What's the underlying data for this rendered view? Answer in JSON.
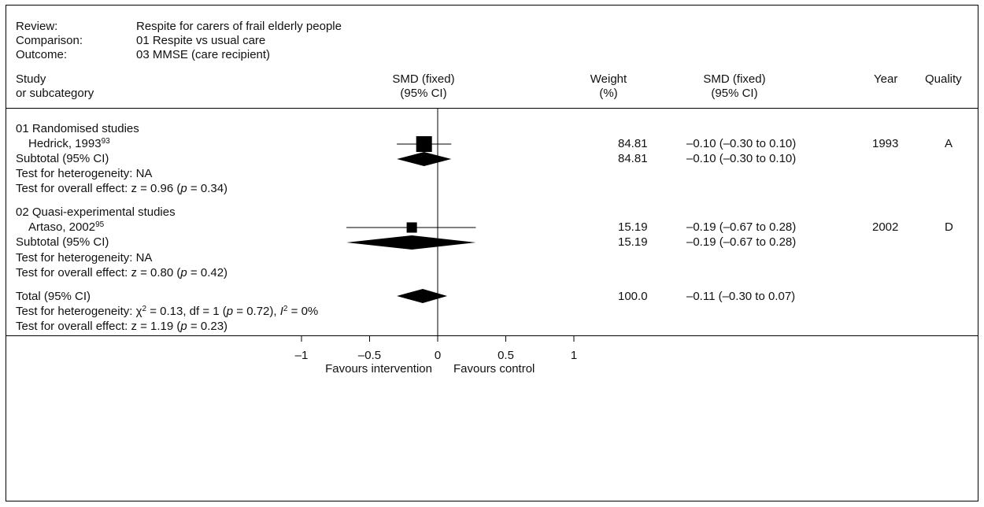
{
  "meta": {
    "review_label": "Review:",
    "review": "Respite for carers of frail elderly people",
    "comparison_label": "Comparison:",
    "comparison": "01 Respite vs usual care",
    "outcome_label": "Outcome:",
    "outcome": "03 MMSE (care recipient)"
  },
  "headers": {
    "study1": "Study",
    "study2": "or subcategory",
    "smd_plot1": "SMD (fixed)",
    "smd_plot2": "(95% CI)",
    "weight1": "Weight",
    "weight2": "(%)",
    "smd_text1": "SMD (fixed)",
    "smd_text2": "(95% CI)",
    "year": "Year",
    "quality": "Quality"
  },
  "groups": [
    {
      "title": "01 Randomised studies",
      "study_name": "Hedrick, 1993",
      "study_ref": "93",
      "study_weight": "84.81",
      "study_ci": "–0.10 (–0.30 to 0.10)",
      "study_year": "1993",
      "study_quality": "A",
      "subtotal_label": "Subtotal (95% CI)",
      "subtotal_weight": "84.81",
      "subtotal_ci": "–0.10 (–0.30 to 0.10)",
      "heterogeneity": "Test for heterogeneity: NA",
      "overall_prefix": "Test for overall effect: z = 0.96 (",
      "overall_p": "p",
      "overall_suffix": " = 0.34)"
    },
    {
      "title": "02 Quasi-experimental studies",
      "study_name": "Artaso, 2002",
      "study_ref": "95",
      "study_weight": "15.19",
      "study_ci": "–0.19 (–0.67 to 0.28)",
      "study_year": "2002",
      "study_quality": "D",
      "subtotal_label": "Subtotal (95% CI)",
      "subtotal_weight": "15.19",
      "subtotal_ci": "–0.19 (–0.67 to 0.28)",
      "heterogeneity": "Test for heterogeneity: NA",
      "overall_prefix": "Test for overall effect: z = 0.80 (",
      "overall_p": "p",
      "overall_suffix": " = 0.42)"
    }
  ],
  "total": {
    "label": "Total (95% CI)",
    "weight": "100.0",
    "ci": "–0.11 (–0.30 to 0.07)",
    "heterogeneity_prefix": "Test for heterogeneity: χ",
    "heterogeneity_sup": "2",
    "heterogeneity_mid": " = 0.13, df = 1 (",
    "heterogeneity_p": "p",
    "heterogeneity_mid2": " = 0.72), ",
    "heterogeneity_i": "I",
    "heterogeneity_isup": "2",
    "heterogeneity_end": " = 0%",
    "overall_prefix": "Test for overall effect: z = 1.19 (",
    "overall_p": "p",
    "overall_suffix": " = 0.23)"
  },
  "axis": {
    "ticks": [
      "–1",
      "–0.5",
      "0",
      "0.5",
      "1"
    ],
    "favours_left": "Favours intervention",
    "favours_right": "Favours control"
  },
  "chart_data": {
    "type": "forest",
    "xlim": [
      -1,
      1
    ],
    "ticks": [
      -1,
      -0.5,
      0,
      0.5,
      1
    ],
    "studies": [
      {
        "name": "Hedrick, 1993",
        "smd": -0.1,
        "ci": [
          -0.3,
          0.1
        ],
        "weight": 84.81
      },
      {
        "name": "Artaso, 2002",
        "smd": -0.19,
        "ci": [
          -0.67,
          0.28
        ],
        "weight": 15.19
      }
    ],
    "subtotals": [
      {
        "name": "Subtotal (95% CI)",
        "smd": -0.1,
        "ci": [
          -0.3,
          0.1
        ]
      },
      {
        "name": "Subtotal (95% CI)",
        "smd": -0.19,
        "ci": [
          -0.67,
          0.28
        ]
      }
    ],
    "total": {
      "name": "Total (95% CI)",
      "smd": -0.11,
      "ci": [
        -0.3,
        0.07
      ]
    }
  }
}
